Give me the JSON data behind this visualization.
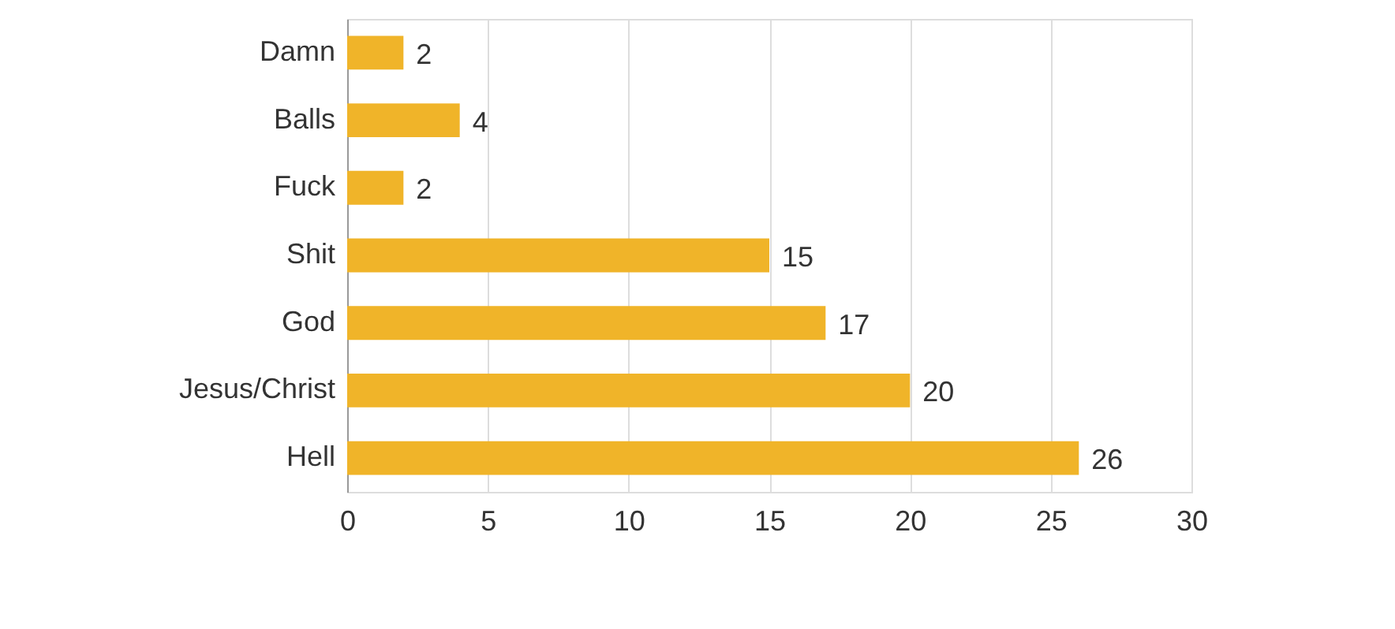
{
  "chart_data": {
    "type": "bar",
    "orientation": "horizontal",
    "categories": [
      "Damn",
      "Balls",
      "Fuck",
      "Shit",
      "God",
      "Jesus/Christ",
      "Hell"
    ],
    "values": [
      2,
      4,
      2,
      15,
      17,
      20,
      26
    ],
    "color": "#f0b429",
    "xlim": [
      0,
      30
    ],
    "xticks": [
      0,
      5,
      10,
      15,
      20,
      25,
      30
    ],
    "grid": "x",
    "data_labels": true
  }
}
